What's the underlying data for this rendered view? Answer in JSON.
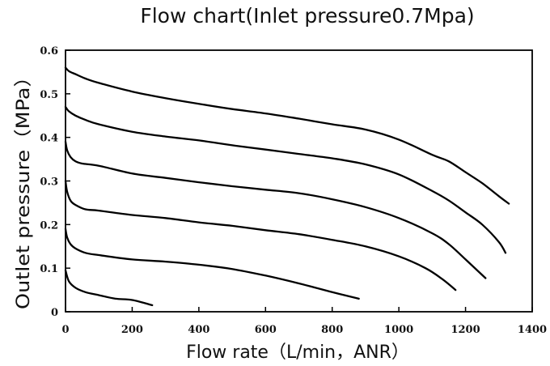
{
  "chart_data": {
    "type": "line",
    "title": "Flow chart(Inlet pressure0.7Mpa)",
    "xlabel": "Flow rate（L/min，ANR）",
    "ylabel": "Outlet pressure（MPa）",
    "xlim": [
      0,
      1400
    ],
    "ylim": [
      0,
      0.6
    ],
    "xticks": [
      0,
      200,
      400,
      600,
      800,
      1000,
      1200,
      1400
    ],
    "yticks": [
      0,
      0.1,
      0.2,
      0.3,
      0.4,
      0.5,
      0.6
    ],
    "xtick_labels": [
      "0",
      "200",
      "400",
      "600",
      "800",
      "1000",
      "1200",
      "1400"
    ],
    "ytick_labels": [
      "0",
      "0.1",
      "0.2",
      "0.3",
      "0.4",
      "0.5",
      "0.6"
    ],
    "grid": false,
    "series": [
      {
        "x": [
          0,
          10,
          30,
          60,
          100,
          150,
          200,
          260
        ],
        "y": [
          0.095,
          0.07,
          0.055,
          0.045,
          0.038,
          0.03,
          0.027,
          0.015
        ]
      },
      {
        "x": [
          0,
          5,
          15,
          30,
          60,
          100,
          200,
          300,
          400,
          500,
          600,
          700,
          800,
          880
        ],
        "y": [
          0.19,
          0.17,
          0.155,
          0.145,
          0.135,
          0.13,
          0.12,
          0.115,
          0.108,
          0.098,
          0.083,
          0.065,
          0.045,
          0.03
        ]
      },
      {
        "x": [
          0,
          5,
          15,
          30,
          60,
          100,
          200,
          300,
          400,
          500,
          600,
          700,
          800,
          900,
          1000,
          1080,
          1130,
          1170
        ],
        "y": [
          0.3,
          0.275,
          0.255,
          0.245,
          0.235,
          0.232,
          0.222,
          0.215,
          0.205,
          0.197,
          0.187,
          0.178,
          0.165,
          0.15,
          0.127,
          0.1,
          0.075,
          0.05
        ]
      },
      {
        "x": [
          0,
          5,
          15,
          30,
          50,
          100,
          200,
          300,
          400,
          500,
          600,
          700,
          800,
          900,
          1000,
          1100,
          1150,
          1200,
          1260
        ],
        "y": [
          0.39,
          0.37,
          0.355,
          0.345,
          0.34,
          0.335,
          0.317,
          0.307,
          0.297,
          0.288,
          0.28,
          0.272,
          0.258,
          0.24,
          0.215,
          0.18,
          0.155,
          0.12,
          0.077
        ]
      },
      {
        "x": [
          0,
          10,
          30,
          60,
          100,
          200,
          300,
          400,
          500,
          600,
          700,
          800,
          900,
          1000,
          1100,
          1150,
          1200,
          1250,
          1300,
          1320
        ],
        "y": [
          0.47,
          0.46,
          0.45,
          0.44,
          0.43,
          0.413,
          0.402,
          0.393,
          0.382,
          0.372,
          0.362,
          0.352,
          0.338,
          0.315,
          0.277,
          0.255,
          0.228,
          0.2,
          0.16,
          0.135
        ]
      },
      {
        "x": [
          0,
          10,
          30,
          60,
          100,
          200,
          300,
          400,
          500,
          600,
          700,
          800,
          900,
          1000,
          1100,
          1150,
          1200,
          1250,
          1300,
          1330
        ],
        "y": [
          0.56,
          0.552,
          0.545,
          0.535,
          0.525,
          0.505,
          0.49,
          0.477,
          0.465,
          0.455,
          0.443,
          0.43,
          0.418,
          0.395,
          0.36,
          0.345,
          0.32,
          0.295,
          0.265,
          0.248
        ]
      }
    ]
  }
}
